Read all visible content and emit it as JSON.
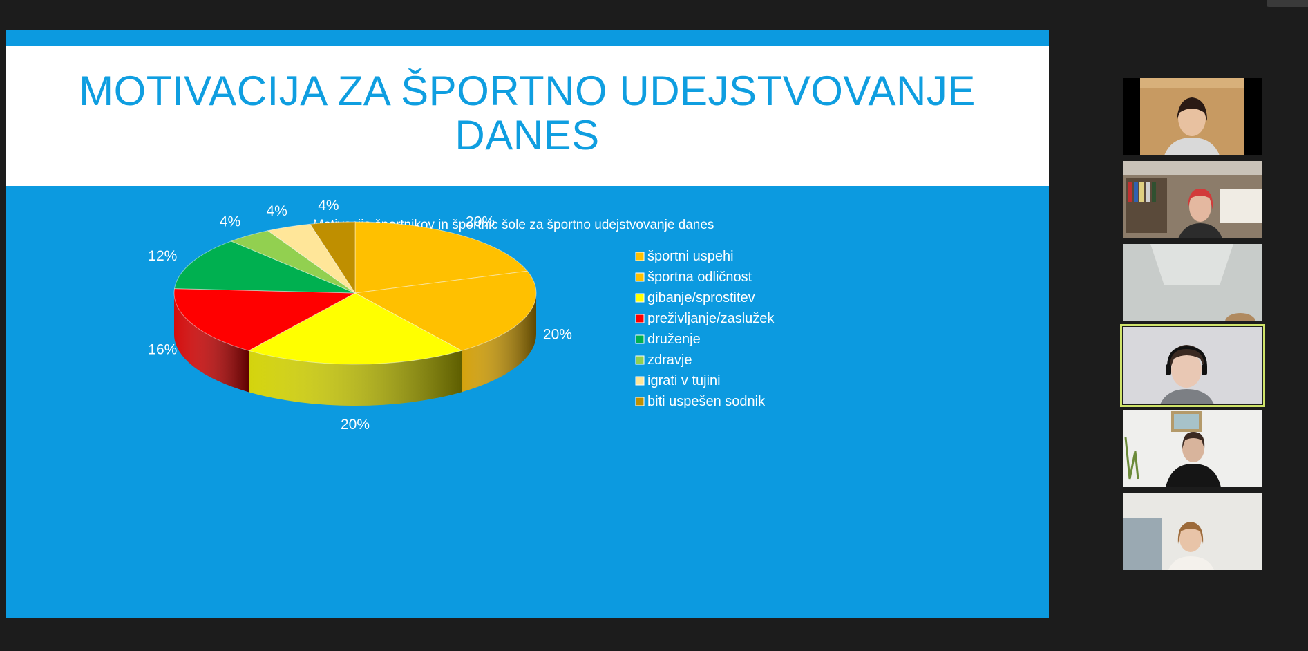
{
  "slide": {
    "title_line1": "MOTIVACIJA ZA ŠPORTNO UDEJSTVOVANJE",
    "title_line2": "DANES"
  },
  "chart_data": {
    "type": "pie",
    "title": "Motivacija športnikov in športnic šole za športno udejstvovanje danes",
    "legend_position": "right",
    "three_d": true,
    "slices": [
      {
        "label": "športni uspehi",
        "value": 20,
        "color": "#ffc000"
      },
      {
        "label": "športna odličnost",
        "value": 20,
        "color": "#ffc000"
      },
      {
        "label": "gibanje/sprostitev",
        "value": 20,
        "color": "#ffff00"
      },
      {
        "label": "preživljanje/zaslužek",
        "value": 16,
        "color": "#ff0000"
      },
      {
        "label": "druženje",
        "value": 12,
        "color": "#00b050"
      },
      {
        "label": "zdravje",
        "value": 4,
        "color": "#92d050"
      },
      {
        "label": "igrati v tujini",
        "value": 4,
        "color": "#ffe699"
      },
      {
        "label": "biti uspešen sodnik",
        "value": 4,
        "color": "#bf8f00"
      }
    ],
    "data_labels": [
      "20%",
      "20%",
      "20%",
      "16%",
      "12%",
      "4%",
      "4%",
      "4%"
    ]
  },
  "participants": [
    {
      "name": "participant-1",
      "active": false
    },
    {
      "name": "participant-2",
      "active": false
    },
    {
      "name": "participant-3",
      "active": false
    },
    {
      "name": "participant-4",
      "active": true
    },
    {
      "name": "participant-5",
      "active": false
    },
    {
      "name": "participant-6",
      "active": false
    }
  ]
}
